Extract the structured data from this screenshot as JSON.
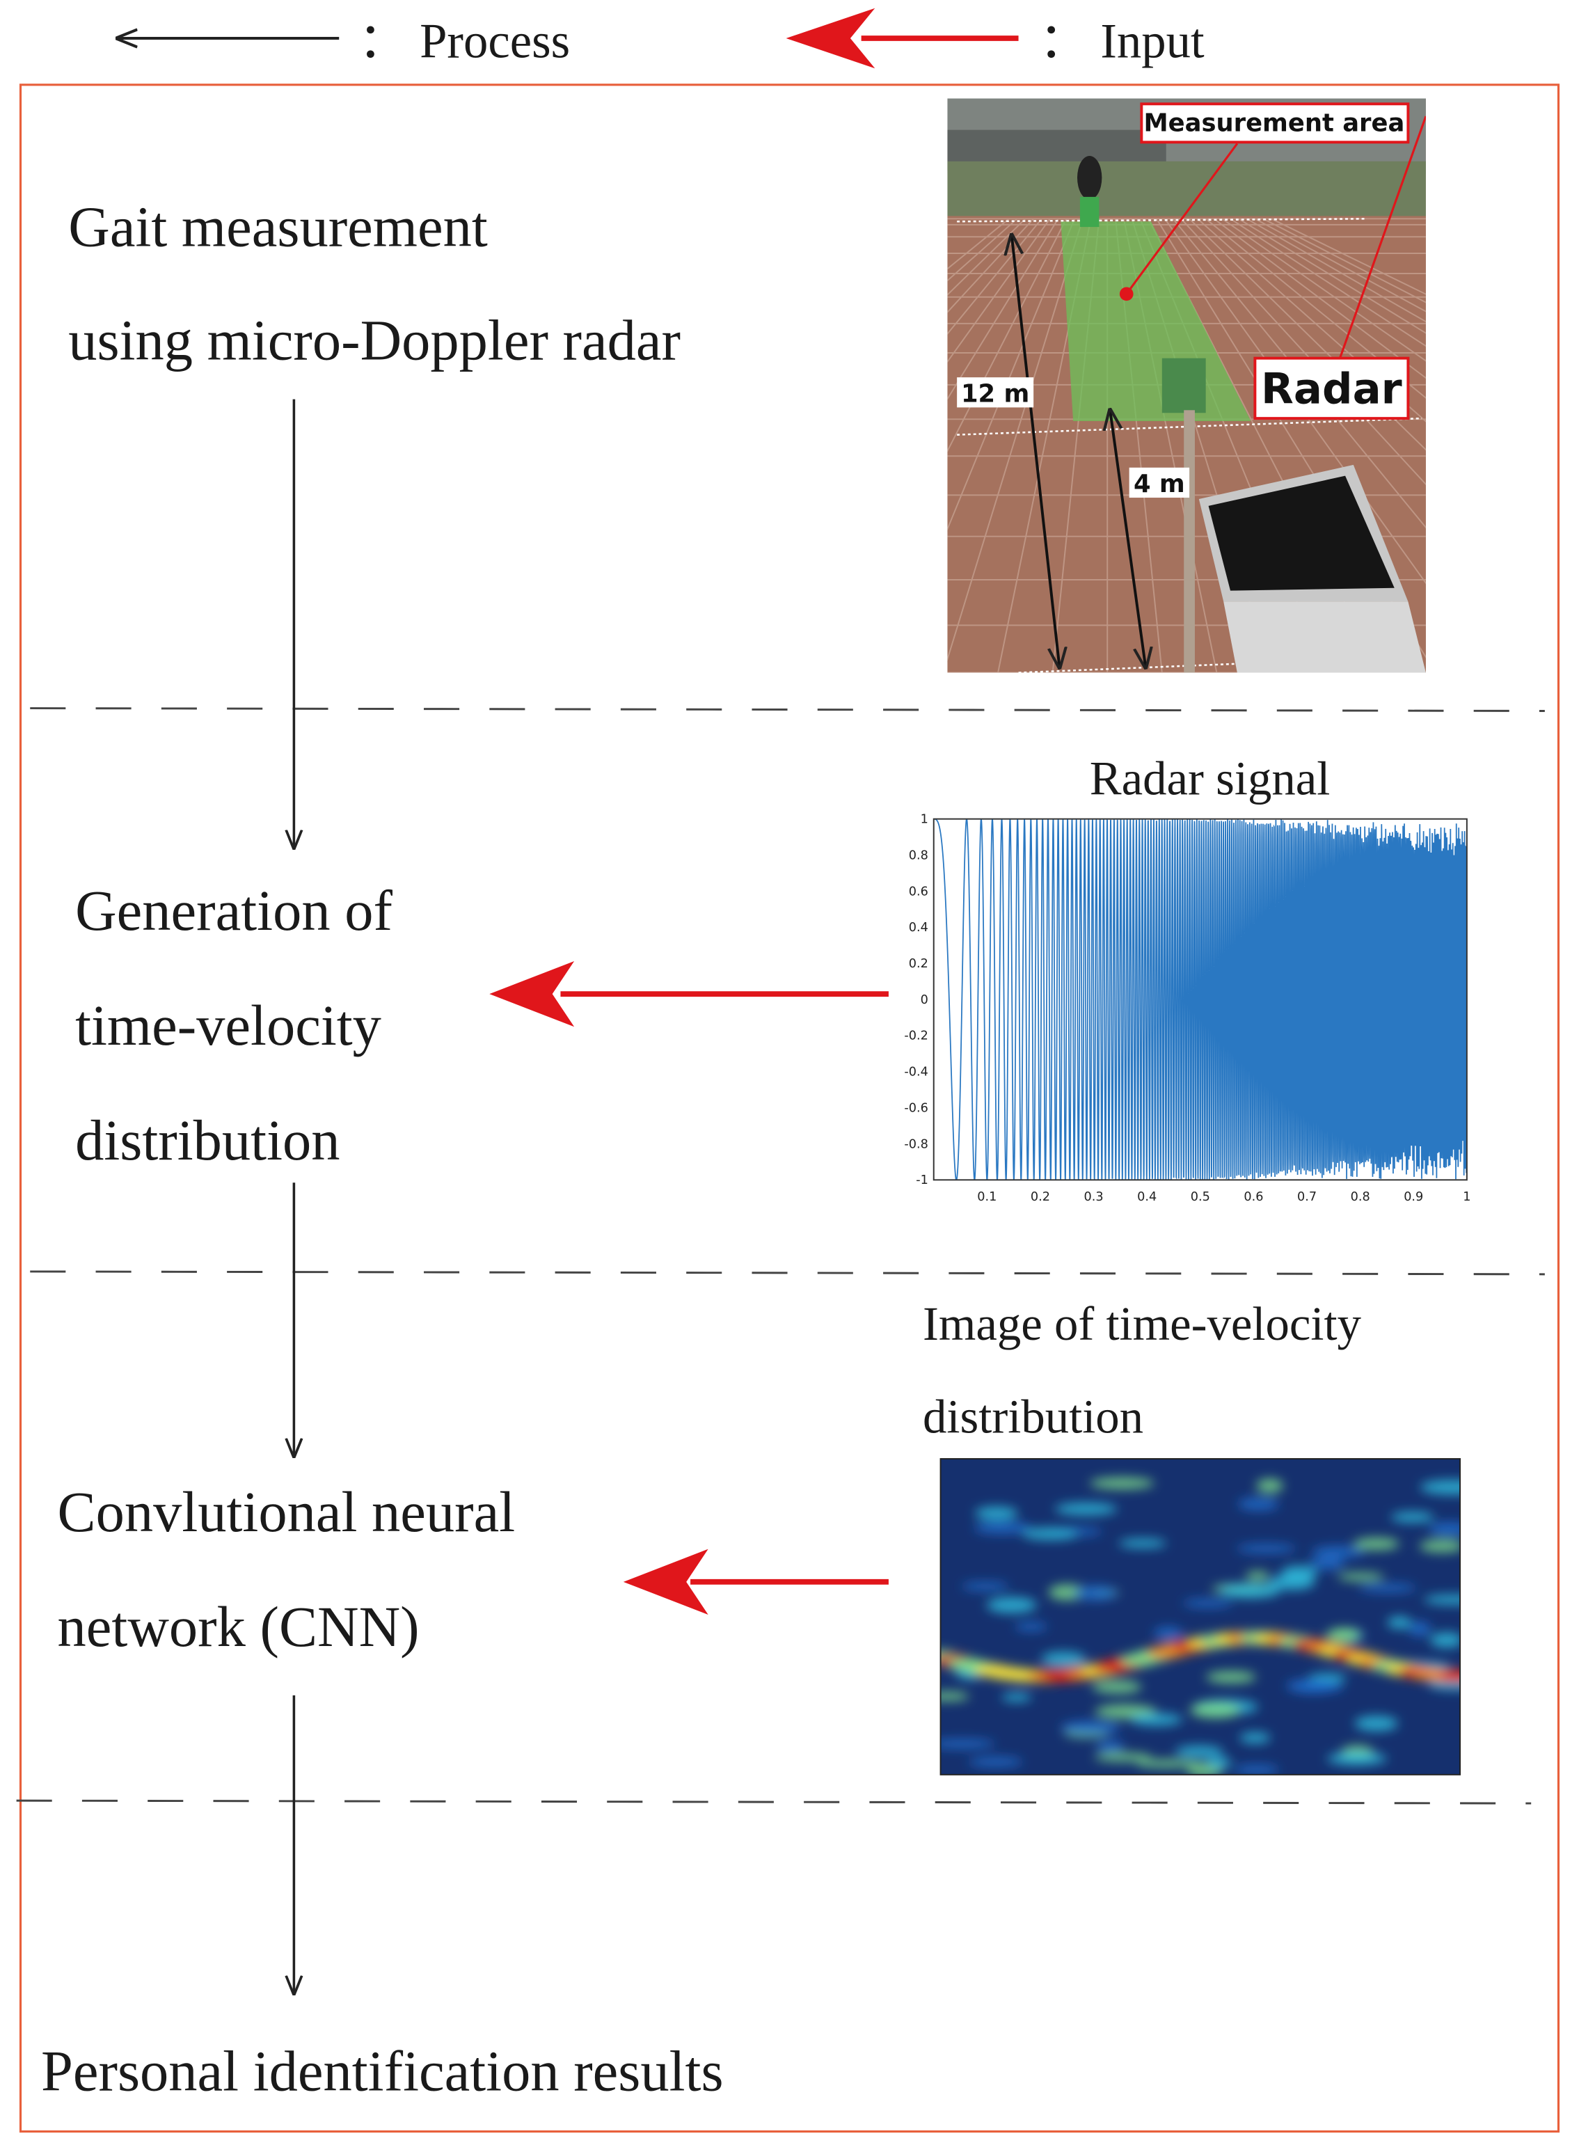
{
  "legend": {
    "process": "： Process",
    "input": "： Input"
  },
  "steps": [
    {
      "lines": [
        "Gait measurement",
        "using micro-Doppler radar"
      ]
    },
    {
      "lines": [
        "Generation of",
        "time-velocity",
        "distribution"
      ]
    },
    {
      "lines": [
        "Convlutional neural",
        "network (CNN)"
      ]
    },
    {
      "lines": [
        "Personal identification results"
      ]
    }
  ],
  "photo": {
    "measurement_area": "Measurement area",
    "radar": "Radar",
    "distance_long": "12 m",
    "distance_short": "4 m"
  },
  "radar_plot": {
    "title": "Radar signal",
    "yticks": [
      "1",
      "0.8",
      "0.6",
      "0.4",
      "0.2",
      "0",
      "-0.2",
      "-0.4",
      "-0.6",
      "-0.8",
      "-1"
    ],
    "xticks": [
      "0.1",
      "0.2",
      "0.3",
      "0.4",
      "0.5",
      "0.6",
      "0.7",
      "0.8",
      "0.9",
      "1"
    ]
  },
  "spectrogram": {
    "title_lines": [
      "Image of time-velocity",
      "distribution"
    ]
  }
}
